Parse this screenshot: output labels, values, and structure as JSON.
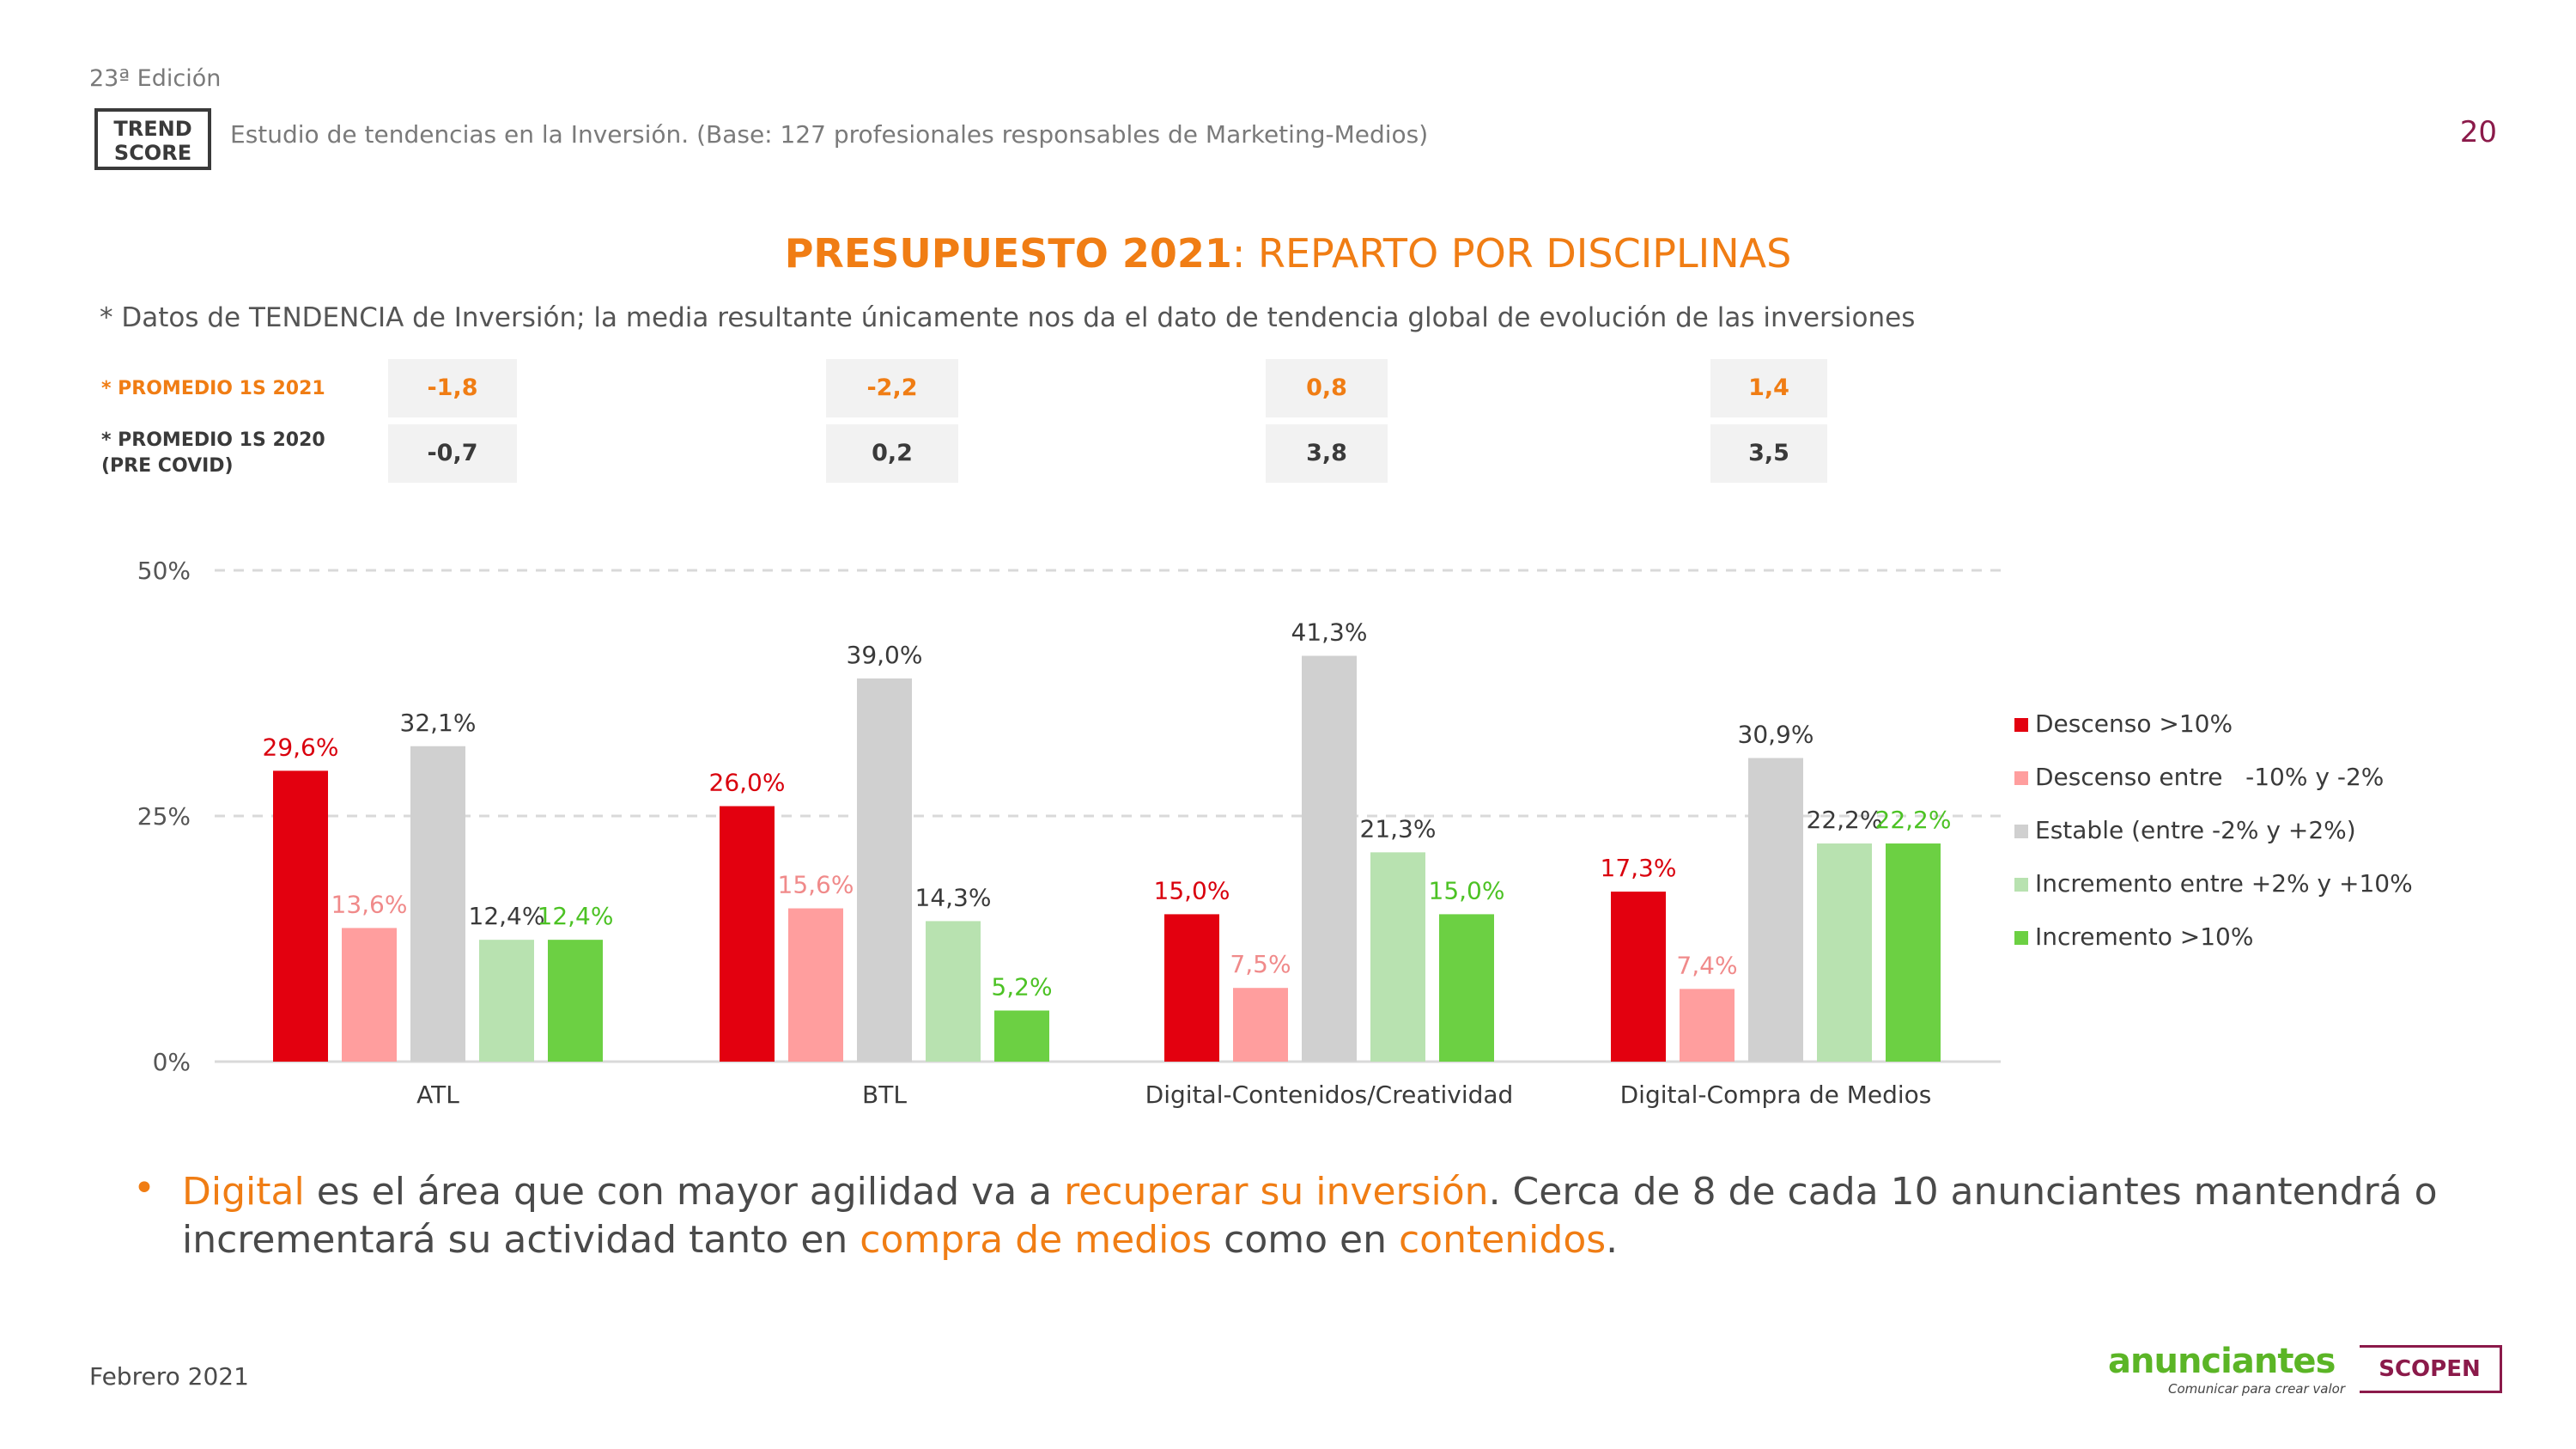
{
  "header": {
    "edition": "23ª Edición",
    "logo_line1": "TREND",
    "logo_line2": "SCORE",
    "subtitle": "Estudio de tendencias en la Inversión. (Base: 127 profesionales responsables de Marketing-Medios)",
    "page_number": "20"
  },
  "title": {
    "bold": "PRESUPUESTO 2021",
    "rest": ": REPARTO POR DISCIPLINAS"
  },
  "note": "* Datos de TENDENCIA de Inversión; la media resultante únicamente nos da el dato de tendencia global de evolución de las inversiones",
  "averages": {
    "row1_label": "* PROMEDIO 1S 2021",
    "row2_label_line1": "* PROMEDIO 1S 2020",
    "row2_label_line2": "(PRE COVID)",
    "row1": [
      "-1,8",
      "-2,2",
      "0,8",
      "1,4"
    ],
    "row2": [
      "-0,7",
      "0,2",
      "3,8",
      "3,5"
    ]
  },
  "chart_data": {
    "type": "bar",
    "categories": [
      "ATL",
      "BTL",
      "Digital-Contenidos/Creatividad",
      "Digital-Compra de Medios"
    ],
    "series": [
      {
        "name": "Descenso >10%",
        "values": [
          29.6,
          26.0,
          15.0,
          17.3
        ],
        "labels": [
          "29,6%",
          "26,0%",
          "15,0%",
          "17,3%"
        ],
        "color": "#e3000f",
        "label_color": "#d9000d"
      },
      {
        "name": "Descenso entre   -10% y -2%",
        "values": [
          13.6,
          15.6,
          7.5,
          7.4
        ],
        "labels": [
          "13,6%",
          "15,6%",
          "7,5%",
          "7,4%"
        ],
        "color": "#ff9e9e",
        "label_color": "#f08a8a"
      },
      {
        "name": "Estable (entre -2% y +2%)",
        "values": [
          32.1,
          39.0,
          41.3,
          30.9
        ],
        "labels": [
          "32,1%",
          "39,0%",
          "41,3%",
          "30,9%"
        ],
        "color": "#d0d0d0",
        "label_color": "#3a3a3a"
      },
      {
        "name": "Incremento entre +2% y +10%",
        "values": [
          12.4,
          14.3,
          21.3,
          22.2
        ],
        "labels": [
          "12,4%",
          "14,3%",
          "21,3%",
          "22,2%"
        ],
        "color": "#b8e2b0",
        "label_color": "#3a3a3a"
      },
      {
        "name": "Incremento >10%",
        "values": [
          12.4,
          5.2,
          15.0,
          22.2
        ],
        "labels": [
          "12,4%",
          "5,2%",
          "15,0%",
          "22,2%"
        ],
        "color": "#6cd043",
        "label_color": "#4cc224"
      }
    ],
    "yticks": [
      "0%",
      "25%",
      "50%"
    ],
    "ylim": [
      0,
      50
    ],
    "grid": true,
    "legend": "right"
  },
  "bullet": {
    "p1": "Digital",
    "p2": " es el área que con mayor agilidad va a ",
    "p3": "recuperar su inversión",
    "p4": ". Cerca de 8 de cada 10 anunciantes mantendrá o incrementará su actividad tanto en ",
    "p5": "compra de medios",
    "p6": " como en ",
    "p7": "contenidos",
    "p8": "."
  },
  "footer": {
    "date": "Febrero 2021",
    "anunciantes": "anunciantes",
    "anunciantes_tagline": "Comunicar para crear valor",
    "scopen": "SCOPEN"
  }
}
